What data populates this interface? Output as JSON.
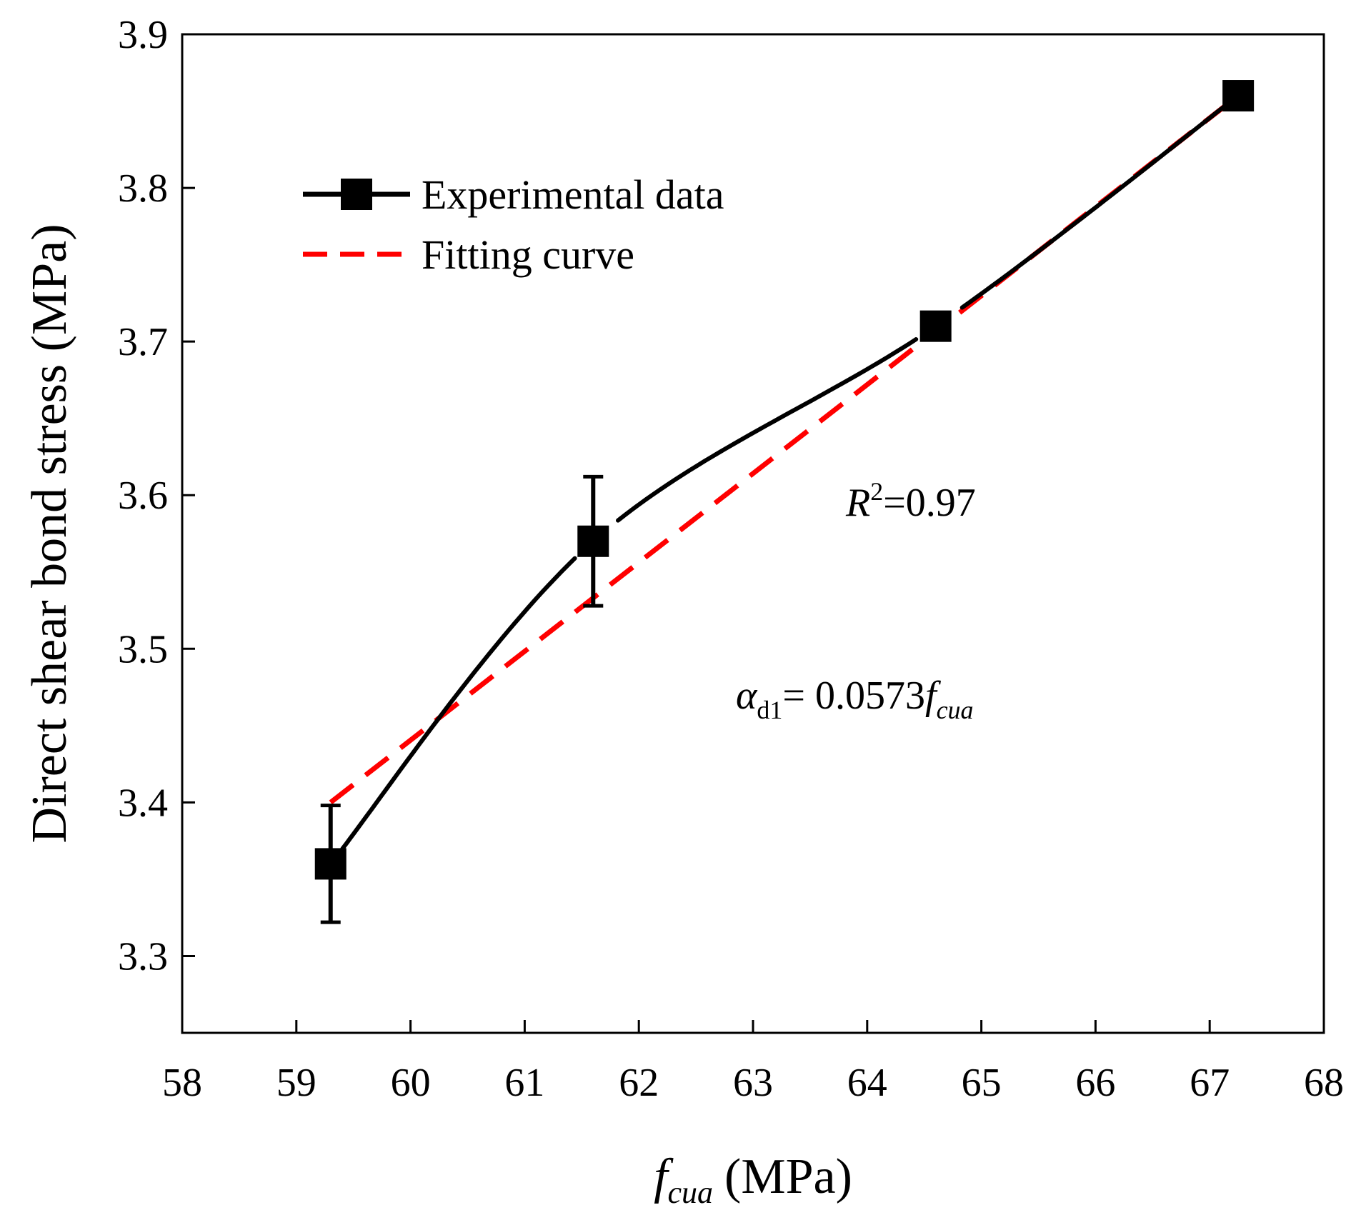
{
  "chart_data": {
    "type": "line",
    "title": "",
    "xlabel": {
      "symbol": "f",
      "subscript": "cua",
      "unit": "(MPa)"
    },
    "ylabel": "Direct shear bond stress (MPa)",
    "xlim": [
      58,
      68
    ],
    "ylim": [
      3.25,
      3.9
    ],
    "xticks": [
      "58",
      "59",
      "60",
      "61",
      "62",
      "63",
      "64",
      "65",
      "66",
      "67",
      "68"
    ],
    "yticks": [
      "3.3",
      "3.4",
      "3.5",
      "3.6",
      "3.7",
      "3.8",
      "3.9"
    ],
    "grid": false,
    "legend_position": "top-left",
    "series": [
      {
        "name": "Experimental data",
        "style": "solid line with square markers",
        "color": "#000000",
        "points": [
          {
            "x": 59.3,
            "y": 3.36,
            "err": 0.038
          },
          {
            "x": 61.6,
            "y": 3.57,
            "err": 0.042
          },
          {
            "x": 64.6,
            "y": 3.71,
            "err": 0.008
          },
          {
            "x": 67.25,
            "y": 3.86,
            "err": 0.008
          }
        ]
      },
      {
        "name": "Fitting curve",
        "style": "dashed",
        "color": "#ff0000",
        "x": [
          59.3,
          67.25
        ],
        "y": [
          3.4,
          3.86
        ]
      }
    ],
    "annotations": {
      "r2": {
        "symbol": "R",
        "sup": "2",
        "rest": "=0.97"
      },
      "equation": {
        "symbol": "α",
        "sub": "d1",
        "rest": "= 0.0573",
        "f": "f",
        "fsub": "cua"
      }
    }
  }
}
